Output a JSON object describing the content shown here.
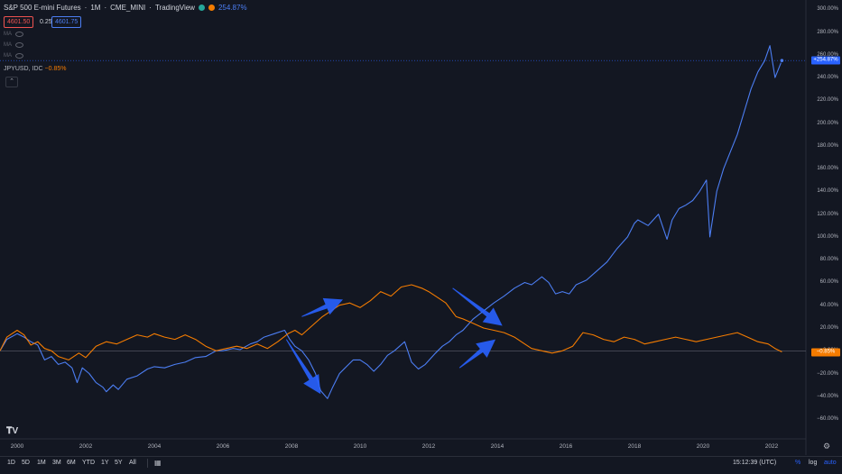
{
  "header": {
    "symbol": "S&P 500 E-mini Futures",
    "sep1": "·",
    "interval": "1M",
    "sep2": "·",
    "exchange": "CME_MINI",
    "sep3": "·",
    "source": "TradingView",
    "change_pct": "254.87%",
    "price_bid": "4601.50",
    "spread": "0.25",
    "price_ask": "4601.75"
  },
  "indicators": [
    {
      "label": "MA"
    },
    {
      "label": "MA"
    },
    {
      "label": "MA"
    }
  ],
  "compare": {
    "symbol": "JPYUSD, IDC",
    "change": "−0.85%"
  },
  "colors": {
    "background": "#131722",
    "sp500": "#4c7ef3",
    "jpyusd": "#f57c00",
    "arrow": "#2962ff",
    "grid": "#1e222d"
  },
  "icons": {
    "collapse": "chevron-up-icon",
    "settings": "gear-icon",
    "calendar": "calendar-icon",
    "logo": "tradingview-logo"
  },
  "timeframes": [
    "1D",
    "5D",
    "1M",
    "3M",
    "6M",
    "YTD",
    "1Y",
    "5Y",
    "All"
  ],
  "clock": "15:12:39 (UTC)",
  "scale_options": [
    "%",
    "log",
    "auto"
  ],
  "price_tags": {
    "sp500": "+254.87%",
    "jpyusd": "−0.85%"
  },
  "chart_data": {
    "type": "line",
    "xlim": [
      1999.5,
      2023.0
    ],
    "ylim": [
      -75,
      305
    ],
    "y_ticks": [
      300,
      280,
      260,
      240,
      220,
      200,
      180,
      160,
      140,
      120,
      100,
      80,
      60,
      40,
      20,
      0,
      -20,
      -40,
      -60
    ],
    "y_tick_labels": [
      "300.00%",
      "280.00%",
      "260.00%",
      "240.00%",
      "220.00%",
      "200.00%",
      "180.00%",
      "160.00%",
      "140.00%",
      "120.00%",
      "100.00%",
      "80.00%",
      "60.00%",
      "40.00%",
      "20.00%",
      "0.00%",
      "−20.00%",
      "−40.00%",
      "−60.00%"
    ],
    "x_ticks": [
      2000,
      2002,
      2004,
      2006,
      2008,
      2010,
      2012,
      2014,
      2016,
      2018,
      2020,
      2022
    ],
    "x_tick_labels": [
      "2000",
      "2002",
      "2004",
      "2006",
      "2008",
      "2010",
      "2012",
      "2014",
      "2016",
      "2018",
      "2020",
      "2022"
    ],
    "scale": "percent",
    "grid": false,
    "series": [
      {
        "name": "S&P 500 E-mini Futures",
        "color": "#4c7ef3",
        "x": [
          1999.5,
          1999.7,
          2000.0,
          2000.2,
          2000.4,
          2000.6,
          2000.8,
          2001.0,
          2001.2,
          2001.4,
          2001.6,
          2001.75,
          2001.9,
          2002.1,
          2002.3,
          2002.5,
          2002.6,
          2002.8,
          2002.95,
          2003.2,
          2003.5,
          2003.8,
          2004.0,
          2004.3,
          2004.6,
          2004.9,
          2005.2,
          2005.5,
          2005.8,
          2006.0,
          2006.3,
          2006.5,
          2006.8,
          2007.0,
          2007.2,
          2007.5,
          2007.8,
          2007.95,
          2008.1,
          2008.3,
          2008.5,
          2008.7,
          2008.85,
          2009.05,
          2009.2,
          2009.4,
          2009.6,
          2009.8,
          2010.0,
          2010.2,
          2010.4,
          2010.6,
          2010.8,
          2011.0,
          2011.3,
          2011.5,
          2011.7,
          2011.9,
          2012.2,
          2012.4,
          2012.6,
          2012.8,
          2013.0,
          2013.3,
          2013.6,
          2013.9,
          2014.2,
          2014.5,
          2014.8,
          2015.0,
          2015.3,
          2015.5,
          2015.7,
          2015.9,
          2016.1,
          2016.3,
          2016.6,
          2016.9,
          2017.2,
          2017.5,
          2017.8,
          2018.0,
          2018.1,
          2018.4,
          2018.7,
          2018.95,
          2019.1,
          2019.3,
          2019.5,
          2019.7,
          2019.9,
          2020.1,
          2020.2,
          2020.4,
          2020.6,
          2020.8,
          2021.0,
          2021.2,
          2021.4,
          2021.6,
          2021.8,
          2021.95,
          2022.1,
          2022.3
        ],
        "y": [
          0,
          10,
          15,
          12,
          8,
          5,
          -8,
          -5,
          -12,
          -10,
          -15,
          -28,
          -15,
          -20,
          -28,
          -32,
          -36,
          -30,
          -34,
          -25,
          -22,
          -16,
          -14,
          -15,
          -12,
          -10,
          -6,
          -5,
          0,
          0,
          2,
          1,
          6,
          8,
          12,
          15,
          18,
          10,
          4,
          0,
          -8,
          -20,
          -35,
          -42,
          -32,
          -20,
          -14,
          -8,
          -8,
          -12,
          -18,
          -12,
          -4,
          0,
          8,
          -10,
          -16,
          -12,
          -2,
          4,
          8,
          14,
          18,
          28,
          35,
          42,
          48,
          55,
          60,
          58,
          65,
          60,
          50,
          52,
          50,
          58,
          62,
          70,
          78,
          90,
          100,
          112,
          115,
          110,
          120,
          98,
          115,
          125,
          128,
          132,
          140,
          150,
          100,
          140,
          160,
          175,
          190,
          210,
          230,
          245,
          255,
          268,
          240,
          255
        ]
      },
      {
        "name": "JPYUSD, IDC",
        "color": "#f57c00",
        "x": [
          1999.5,
          1999.7,
          2000.0,
          2000.2,
          2000.4,
          2000.6,
          2000.8,
          2001.0,
          2001.2,
          2001.5,
          2001.8,
          2002.0,
          2002.3,
          2002.6,
          2002.9,
          2003.2,
          2003.5,
          2003.8,
          2004.0,
          2004.3,
          2004.6,
          2004.9,
          2005.2,
          2005.5,
          2005.8,
          2006.1,
          2006.4,
          2006.7,
          2007.0,
          2007.3,
          2007.6,
          2007.9,
          2008.1,
          2008.3,
          2008.6,
          2008.9,
          2009.1,
          2009.4,
          2009.7,
          2010.0,
          2010.3,
          2010.6,
          2010.9,
          2011.2,
          2011.5,
          2011.8,
          2012.0,
          2012.2,
          2012.5,
          2012.8,
          2013.0,
          2013.3,
          2013.6,
          2013.9,
          2014.2,
          2014.5,
          2014.8,
          2015.0,
          2015.3,
          2015.6,
          2015.9,
          2016.2,
          2016.5,
          2016.8,
          2017.1,
          2017.4,
          2017.7,
          2018.0,
          2018.3,
          2018.6,
          2018.9,
          2019.2,
          2019.5,
          2019.8,
          2020.1,
          2020.4,
          2020.7,
          2021.0,
          2021.3,
          2021.6,
          2021.9,
          2022.1,
          2022.3
        ],
        "y": [
          0,
          12,
          18,
          14,
          5,
          8,
          2,
          0,
          -5,
          -8,
          -2,
          -6,
          4,
          8,
          6,
          10,
          14,
          12,
          15,
          12,
          10,
          14,
          10,
          4,
          0,
          2,
          4,
          2,
          6,
          2,
          8,
          15,
          18,
          14,
          22,
          30,
          34,
          40,
          42,
          38,
          44,
          52,
          48,
          56,
          58,
          55,
          52,
          48,
          42,
          30,
          28,
          24,
          20,
          18,
          16,
          12,
          6,
          2,
          0,
          -2,
          0,
          4,
          16,
          14,
          10,
          8,
          12,
          10,
          6,
          8,
          10,
          12,
          10,
          8,
          10,
          12,
          14,
          16,
          12,
          8,
          6,
          2,
          -1
        ]
      }
    ]
  },
  "annotations": {
    "arrows": [
      {
        "from": [
          2008.3,
          30
        ],
        "to": [
          2009.5,
          45
        ]
      },
      {
        "from": [
          2007.85,
          10
        ],
        "to": [
          2008.85,
          -38
        ]
      },
      {
        "from": [
          2012.7,
          55
        ],
        "to": [
          2014.15,
          22
        ]
      },
      {
        "from": [
          2012.9,
          -15
        ],
        "to": [
          2013.95,
          10
        ]
      }
    ]
  }
}
